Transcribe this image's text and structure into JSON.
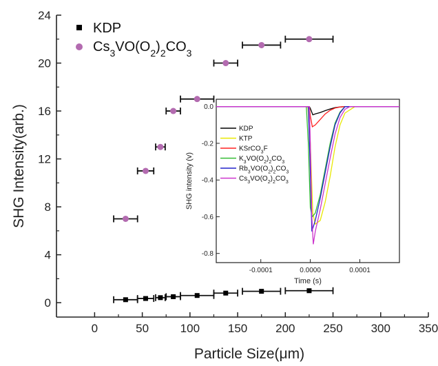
{
  "chart_data": [
    {
      "type": "scatter",
      "title": "",
      "xlabel": "Particle Size(μm)",
      "ylabel": "SHG Intensity(arb.)",
      "xlim": [
        -40,
        350
      ],
      "ylim": [
        -1.2,
        24
      ],
      "xticks": [
        0,
        50,
        100,
        150,
        200,
        250,
        300,
        350
      ],
      "yticks": [
        0,
        4,
        8,
        12,
        16,
        20,
        24
      ],
      "legend_position": "top-left",
      "series": [
        {
          "name": "KDP",
          "marker": "square",
          "color": "#000000",
          "points": [
            {
              "x": 32.5,
              "y": 0.25,
              "xerr": 12.5
            },
            {
              "x": 53.5,
              "y": 0.35,
              "xerr": 8.5
            },
            {
              "x": 69,
              "y": 0.42,
              "xerr": 5
            },
            {
              "x": 82.5,
              "y": 0.5,
              "xerr": 7.5
            },
            {
              "x": 107.5,
              "y": 0.6,
              "xerr": 17.5
            },
            {
              "x": 137.5,
              "y": 0.8,
              "xerr": 12.5
            },
            {
              "x": 175,
              "y": 0.95,
              "xerr": 20
            },
            {
              "x": 225,
              "y": 1.0,
              "xerr": 25
            }
          ]
        },
        {
          "name": "Cs3VO(O2)2CO3",
          "name_parts": [
            {
              "t": "Cs",
              "s": false
            },
            {
              "t": "3",
              "s": true
            },
            {
              "t": "VO(O",
              "s": false
            },
            {
              "t": "2",
              "s": true
            },
            {
              "t": ")",
              "s": false
            },
            {
              "t": "2",
              "s": true
            },
            {
              "t": "CO",
              "s": false
            },
            {
              "t": "3",
              "s": true
            }
          ],
          "marker": "circle",
          "color": "#b36bb0",
          "points": [
            {
              "x": 32.5,
              "y": 7.0,
              "xerr": 12.5
            },
            {
              "x": 53.5,
              "y": 11.0,
              "xerr": 8.5
            },
            {
              "x": 69,
              "y": 13.0,
              "xerr": 5
            },
            {
              "x": 82.5,
              "y": 16.0,
              "xerr": 7.5
            },
            {
              "x": 107.5,
              "y": 17.0,
              "xerr": 17.5
            },
            {
              "x": 137.5,
              "y": 20.0,
              "xerr": 12.5
            },
            {
              "x": 175,
              "y": 21.5,
              "xerr": 20
            },
            {
              "x": 225,
              "y": 22.0,
              "xerr": 25
            }
          ]
        }
      ]
    },
    {
      "type": "line",
      "title": "",
      "xlabel": "Time (s)",
      "ylabel": "SHG intensity (v)",
      "xlim": [
        -0.00019,
        0.00018
      ],
      "ylim": [
        -0.85,
        0.04
      ],
      "xticks": [
        -0.0001,
        0.0,
        0.0001
      ],
      "xtick_labels": [
        "-0.0001",
        "0.0000",
        "0.0001"
      ],
      "yticks": [
        0.0,
        -0.2,
        -0.4,
        -0.6,
        -0.8
      ],
      "ytick_labels": [
        "0.0",
        "-0.2",
        "-0.4",
        "-0.6",
        "-0.8"
      ],
      "legend_position": "left",
      "series": [
        {
          "name": "KDP",
          "name_parts": [
            {
              "t": "KDP",
              "s": false
            }
          ],
          "color": "#000000",
          "x": [
            -0.00019,
            -2e-06,
            0.0,
            5e-06,
            1e-05,
            2e-05,
            3e-05,
            4e-05,
            5e-05,
            6e-05,
            7e-05,
            0.00018
          ],
          "y": [
            0.0,
            0.0,
            -0.01,
            -0.045,
            -0.04,
            -0.032,
            -0.022,
            -0.013,
            -0.006,
            -0.002,
            0.0,
            0.0
          ]
        },
        {
          "name": "KTP",
          "name_parts": [
            {
              "t": "KTP",
              "s": false
            }
          ],
          "color": "#e8e800",
          "x": [
            -0.00019,
            -5e-06,
            0.0,
            5e-06,
            1e-05,
            2e-05,
            3e-05,
            4e-05,
            5e-05,
            6e-05,
            7e-05,
            9e-05,
            0.00018
          ],
          "y": [
            0.0,
            0.0,
            -0.2,
            -0.58,
            -0.64,
            -0.62,
            -0.52,
            -0.38,
            -0.22,
            -0.1,
            -0.035,
            0.0,
            0.0
          ]
        },
        {
          "name": "KSrCO3F",
          "name_parts": [
            {
              "t": "KSrCO",
              "s": false
            },
            {
              "t": "3",
              "s": true
            },
            {
              "t": "F",
              "s": false
            }
          ],
          "color": "#ff2020",
          "x": [
            -0.00019,
            -2e-06,
            0.0,
            4e-06,
            1e-05,
            2e-05,
            3e-05,
            4e-05,
            5e-05,
            6e-05,
            7e-05,
            0.00018
          ],
          "y": [
            0.0,
            0.0,
            -0.05,
            -0.11,
            -0.1,
            -0.07,
            -0.04,
            -0.02,
            -0.008,
            -0.002,
            0.0,
            0.0
          ]
        },
        {
          "name": "K3VO(O2)2CO3",
          "name_parts": [
            {
              "t": "K",
              "s": false
            },
            {
              "t": "3",
              "s": true
            },
            {
              "t": "VO(O",
              "s": false
            },
            {
              "t": "2",
              "s": true
            },
            {
              "t": ")",
              "s": false
            },
            {
              "t": "2",
              "s": true
            },
            {
              "t": "CO",
              "s": false
            },
            {
              "t": "3",
              "s": true
            }
          ],
          "color": "#33bb33",
          "x": [
            -0.00019,
            -8e-06,
            -4e-06,
            0.0,
            4e-06,
            1e-05,
            2e-05,
            3e-05,
            4e-05,
            5e-05,
            6e-05,
            7e-05,
            0.00018
          ],
          "y": [
            0.0,
            0.0,
            -0.2,
            -0.55,
            -0.6,
            -0.58,
            -0.48,
            -0.34,
            -0.2,
            -0.09,
            -0.03,
            0.0,
            0.0
          ]
        },
        {
          "name": "Rb3VO(O2)2CO3",
          "name_parts": [
            {
              "t": "Rb",
              "s": false
            },
            {
              "t": "3",
              "s": true
            },
            {
              "t": "VO(O",
              "s": false
            },
            {
              "t": "2",
              "s": true
            },
            {
              "t": ")",
              "s": false
            },
            {
              "t": "2",
              "s": true
            },
            {
              "t": "CO",
              "s": false
            },
            {
              "t": "3",
              "s": true
            }
          ],
          "color": "#2222cc",
          "x": [
            -0.00019,
            -4e-06,
            0.0,
            3e-06,
            1e-05,
            2e-05,
            3e-05,
            4e-05,
            5e-05,
            6e-05,
            7e-05,
            0.00018
          ],
          "y": [
            0.0,
            0.0,
            -0.35,
            -0.68,
            -0.62,
            -0.5,
            -0.36,
            -0.22,
            -0.1,
            -0.035,
            0.0,
            0.0
          ]
        },
        {
          "name": "Cs3VO(O2)2CO3",
          "name_parts": [
            {
              "t": "Cs",
              "s": false
            },
            {
              "t": "3",
              "s": true
            },
            {
              "t": "VO(O",
              "s": false
            },
            {
              "t": "2",
              "s": true
            },
            {
              "t": ")",
              "s": false
            },
            {
              "t": "2",
              "s": true
            },
            {
              "t": "CO",
              "s": false
            },
            {
              "t": "3",
              "s": true
            }
          ],
          "color": "#cc33cc",
          "x": [
            -0.00019,
            -2e-06,
            0.0,
            3e-06,
            6e-06,
            1e-05,
            2e-05,
            3e-05,
            4e-05,
            5e-05,
            6e-05,
            7e-05,
            8e-05,
            0.00018
          ],
          "y": [
            0.0,
            0.0,
            -0.2,
            -0.6,
            -0.75,
            -0.68,
            -0.56,
            -0.42,
            -0.28,
            -0.15,
            -0.06,
            -0.015,
            0.0,
            0.0
          ]
        }
      ]
    }
  ]
}
